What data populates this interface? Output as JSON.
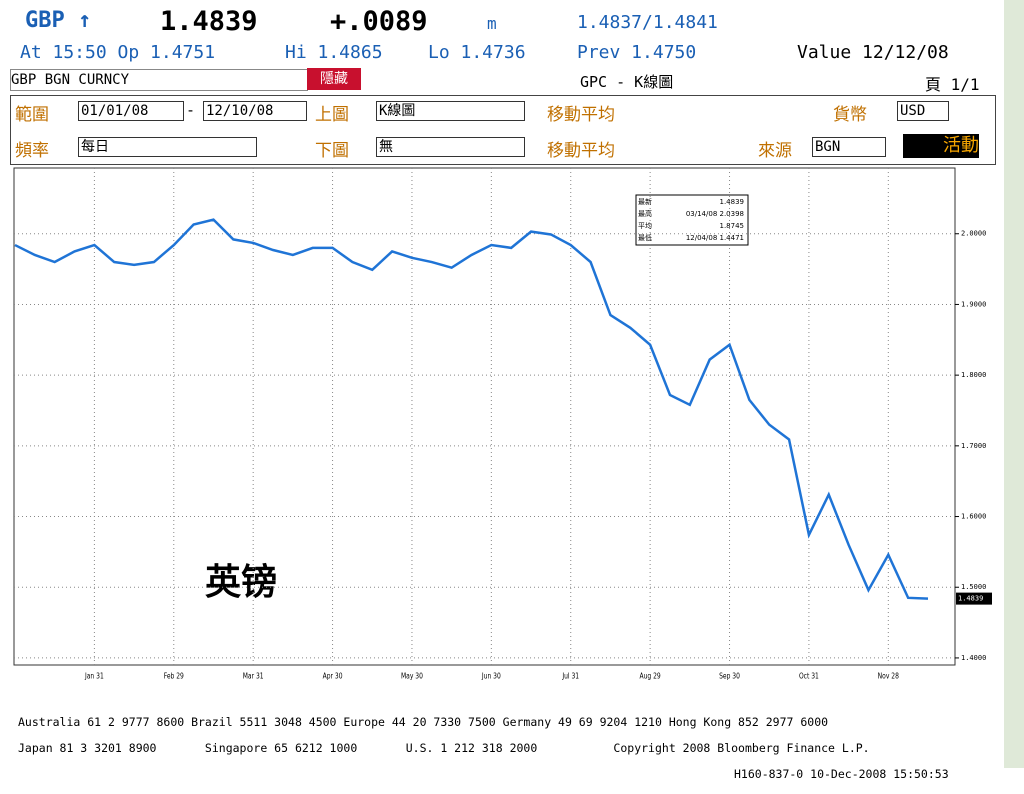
{
  "header": {
    "ticker": "GBP ↑",
    "price": "1.4839",
    "change": "+.0089",
    "flag": "m",
    "bidask": "1.4837/1.4841",
    "time_open": "At 15:50 Op 1.4751",
    "high": "Hi 1.4865",
    "low": "Lo 1.4736",
    "prev": "Prev 1.4750",
    "value_date": "Value 12/12/08",
    "security": "GBP BGN CURNCY",
    "hide": "隱藏",
    "screen": "GPC - K線圖",
    "page": "頁 1/1"
  },
  "form": {
    "range_label": "範圍",
    "start": "01/01/08",
    "dash": "-",
    "end": "12/10/08",
    "upper_label": "上圖",
    "upper": "K線圖",
    "ma1": "移動平均",
    "currency_label": "貨幣",
    "currency": "USD",
    "freq_label": "頻率",
    "freq": "每日",
    "lower_label": "下圖",
    "lower": "無",
    "ma2": "移動平均",
    "source_label": "來源",
    "source": "BGN",
    "action": "活動"
  },
  "chart_data": {
    "type": "line",
    "annotation": "英镑",
    "stats": [
      "最新",
      "最高",
      "平均",
      "最低"
    ],
    "stat_values": [
      "1.4839",
      "03/14/08 2.0398",
      "1.8745",
      "12/04/08 1.4471"
    ],
    "categories": [
      null,
      null,
      null,
      null,
      "Jan 31",
      null,
      null,
      null,
      "Feb 29",
      null,
      null,
      null,
      "Mar 31",
      null,
      null,
      null,
      "Apr 30",
      null,
      null,
      null,
      "May 30",
      null,
      null,
      null,
      "Jun 30",
      null,
      null,
      null,
      "Jul 31",
      null,
      null,
      null,
      "Aug 29",
      null,
      null,
      null,
      "Sep 30",
      null,
      null,
      null,
      "Oct 31",
      null,
      null,
      null,
      "Nov 28",
      null,
      null
    ],
    "series": [
      {
        "name": "GBP",
        "color": "#1f74d6",
        "values": [
          1.984,
          1.97,
          1.96,
          1.975,
          1.984,
          1.96,
          1.956,
          1.96,
          1.984,
          2.013,
          2.02,
          1.992,
          1.987,
          1.977,
          1.97,
          1.98,
          1.98,
          1.96,
          1.949,
          1.975,
          1.966,
          1.96,
          1.952,
          1.97,
          1.984,
          1.98,
          2.003,
          1.999,
          1.984,
          1.96,
          1.885,
          1.867,
          1.843,
          1.772,
          1.758,
          1.822,
          1.843,
          1.765,
          1.73,
          1.709,
          1.574,
          1.631,
          1.56,
          1.496,
          1.546,
          1.485,
          1.4839
        ]
      }
    ],
    "ylim": [
      1.39,
      2.093
    ],
    "yticks": [
      {
        "value": 1.4,
        "label": "1.4000"
      },
      {
        "value": 1.5,
        "label": "1.5000"
      },
      {
        "value": 1.6,
        "label": "1.6000"
      },
      {
        "value": 1.7,
        "label": "1.7000"
      },
      {
        "value": 1.8,
        "label": "1.8000"
      },
      {
        "value": 1.9,
        "label": "1.9000"
      },
      {
        "value": 2.0,
        "label": "2.0000"
      }
    ],
    "grid": true
  },
  "footer": [
    "Australia 61 2 9777 8600 Brazil 5511 3048 4500 Europe 44 20 7330 7500 Germany 49 69 9204 1210 Hong Kong 852 2977 6000",
    "Japan 81 3 3201 8900       Singapore 65 6212 1000       U.S. 1 212 318 2000           Copyright 2008 Bloomberg Finance L.P.",
    "H160-837-0 10-Dec-2008 15:50:53"
  ]
}
